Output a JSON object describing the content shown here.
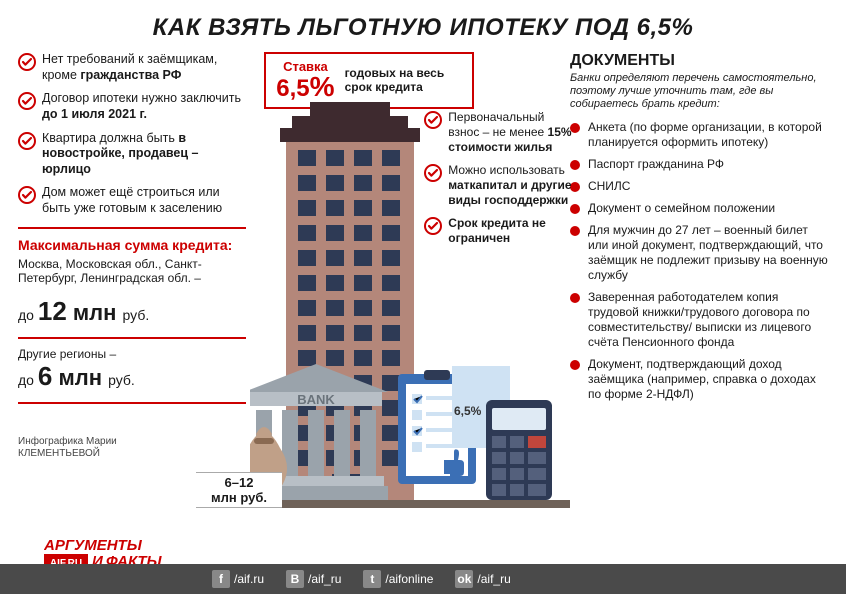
{
  "colors": {
    "accent": "#c00",
    "footer_bg": "#4a4a4a",
    "building_wall": "#b4877a",
    "building_roof": "#3e2a2f",
    "bank_grey": "#9aa3ab",
    "paper_blue": "#3b6fb5",
    "paper_light": "#cfe2f3",
    "calc_body": "#2e3a55",
    "calc_screen": "#dfeaf4",
    "bag_fill": "#c0a088",
    "ground": "#6f6259"
  },
  "title": "КАК ВЗЯТЬ ЛЬГОТНУЮ ИПОТЕКУ ПОД 6,5%",
  "left": {
    "checks": [
      {
        "plain": "Нет требований к заёмщикам, кроме ",
        "bold": "гражданства РФ"
      },
      {
        "plain": "Договор ипотеки нужно заключить ",
        "bold": "до 1 июля 2021 г."
      },
      {
        "plain": "Квартира должна быть ",
        "bold": "в новостройке, продавец – юрлицо"
      },
      {
        "plain": "Дом может ещё строиться или быть уже готовым к заселению",
        "bold": ""
      }
    ],
    "max_head": "Максимальная сумма кредита:",
    "regions_a": "Москва, Московская обл., Санкт-Петербург, Ленинградская обл. –",
    "amount_a_prefix": "до ",
    "amount_a_num": "12",
    "amount_a_unit": " млн ",
    "amount_a_suffix": "руб.",
    "regions_b": "Другие регионы –",
    "amount_b_prefix": "до ",
    "amount_b_num": "6",
    "amount_b_unit": " млн ",
    "amount_b_suffix": "руб.",
    "credits_1": "Инфографика Марии",
    "credits_2": "КЛЕМЕНТЬЕВОЙ"
  },
  "mid": {
    "rate_l1": "Ставка",
    "rate_num": "6,5",
    "rate_pct": "%",
    "rate_right": "годовых на весь срок кредита",
    "checks": [
      {
        "plain": "Первоначальный взнос – не менее ",
        "bold": "15% стоимости жилья"
      },
      {
        "plain": "Можно использовать ",
        "bold": "маткапитал и другие виды господдержки"
      },
      {
        "bold": "Срок кредита не ограничен",
        "plain": ""
      }
    ],
    "bank_label": "BANK",
    "bag_label": "6–12\nмлн руб.",
    "calc_screen": "6,5%"
  },
  "right": {
    "head": "ДОКУМЕНТЫ",
    "sub": "Банки определяют перечень самостоятельно, поэтому лучше уточнить там, где вы собираетесь брать кредит:",
    "items": [
      "Анкета (по форме организации, в которой планируется оформить ипотеку)",
      "Паспорт гражданина РФ",
      "СНИЛС",
      "Документ о семейном положении",
      "Для мужчин до 27 лет – военный билет или иной документ, подтверждающий, что заёмщик не подлежит призыву на военную службу",
      "Заверенная работодателем копия трудовой книжки/трудового договора по совместительству/ выписки из лицевого счёта Пенсионного фонда",
      "Документ, подтверждающий доход заёмщика (например, справка о доходах по форме 2-НДФЛ)"
    ]
  },
  "footer": {
    "logo_top": "АРГУМЕНТЫ",
    "logo_bottom": "ФАКТЫ",
    "logo_sub": "AIF.RU",
    "socials": [
      {
        "icon": "f",
        "handle": "/aif.ru"
      },
      {
        "icon": "B",
        "handle": "/aif_ru"
      },
      {
        "icon": "t",
        "handle": "/aifonline"
      },
      {
        "icon": "ok",
        "handle": "/aif_ru"
      }
    ]
  }
}
